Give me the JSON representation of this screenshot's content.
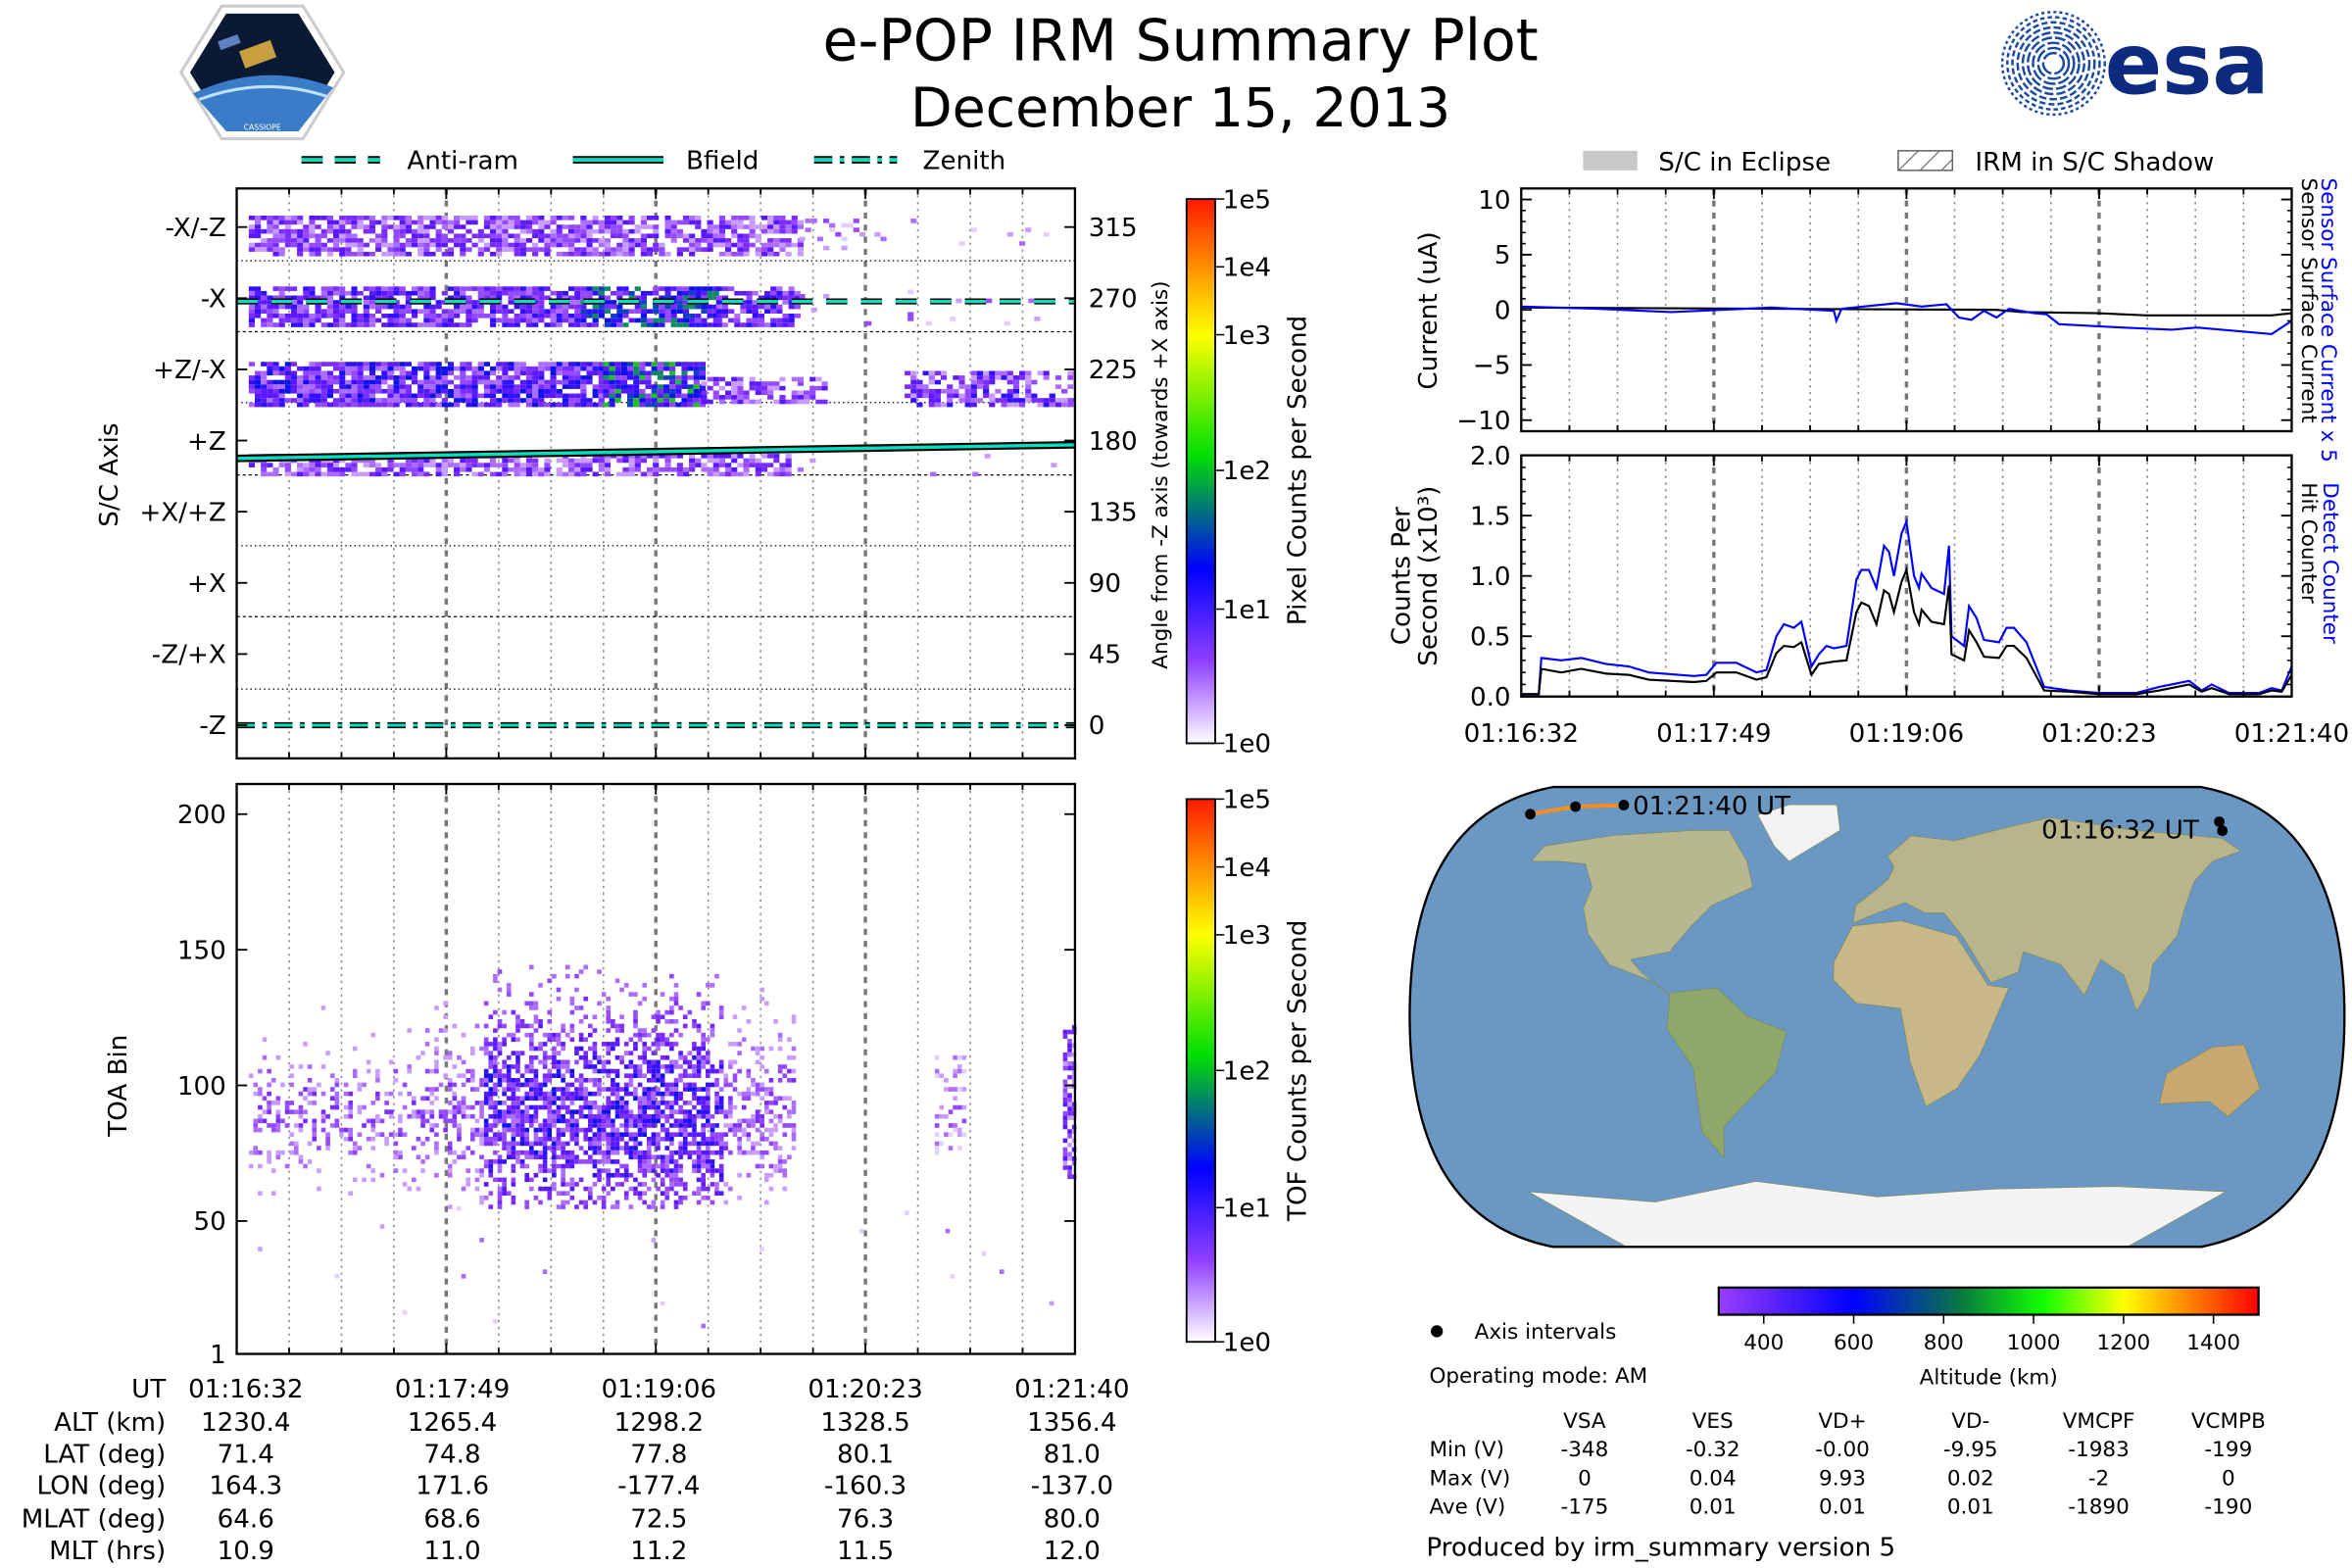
{
  "header": {
    "title": "e-POP IRM Summary Plot",
    "subtitle": "December 15, 2013",
    "logo_left_text": "CASSIOPE",
    "logo_right_text": "esa"
  },
  "legend_left": {
    "anti_ram": "Anti-ram",
    "bfield": "Bfield",
    "zenith": "Zenith"
  },
  "legend_right": {
    "eclipse": "S/C in Eclipse",
    "shadow": "IRM in S/C Shadow"
  },
  "time_ticks": [
    "01:16:32",
    "01:17:49",
    "01:19:06",
    "01:20:23",
    "01:21:40"
  ],
  "colors": {
    "accent_line": "#00e0c0",
    "blue": "#0000ff",
    "black": "#000000",
    "ocean": "#6b98c2"
  },
  "chart_data": [
    {
      "id": "pixel_angle",
      "type": "heatmap",
      "ylabel": "S/C Axis",
      "y2label": "Angle from -Z axis (towards +X axis)",
      "axis_labels": [
        "-X/-Z",
        "-X",
        "+Z/-X",
        "+Z",
        "+X/+Z",
        "+X",
        "-Z/+X",
        "-Z"
      ],
      "angle_ticks": [
        "315",
        "270",
        "225",
        "180",
        "135",
        "90",
        "45",
        "0"
      ],
      "xlim_seconds": [
        0,
        308
      ],
      "colorbar": {
        "label": "Pixel Counts per Second",
        "ticks": [
          "1e5",
          "1e4",
          "1e3",
          "1e2",
          "1e1",
          "1e0"
        ]
      },
      "reference_lines": [
        {
          "name": "Anti-ram",
          "angle": 268
        },
        {
          "name": "Bfield",
          "angle_start": 168.7,
          "angle_end": 177.3
        },
        {
          "name": "Zenith",
          "angle": 0
        }
      ]
    },
    {
      "id": "tof",
      "type": "heatmap",
      "ylabel": "TOA Bin",
      "yticks": [
        "200",
        "150",
        "100",
        "50",
        "1"
      ],
      "ylim": [
        1,
        210
      ],
      "colorbar": {
        "label": "TOF Counts per Second",
        "ticks": [
          "1e5",
          "1e4",
          "1e3",
          "1e2",
          "1e1",
          "1e0"
        ]
      }
    },
    {
      "id": "current",
      "type": "line",
      "ylabel": "Current (uA)",
      "yticks": [
        "10",
        "5",
        "0",
        "−5",
        "−10"
      ],
      "ylim": [
        -11,
        11
      ],
      "xlim_seconds": [
        0,
        308
      ],
      "right_labels": [
        "Sensor Surface Current x 5",
        "Sensor Surface Current"
      ],
      "series": [
        {
          "name": "Sensor Surface Current",
          "color": "#000000",
          "x": [
            0,
            100,
            190,
            200,
            230,
            250,
            300,
            308
          ],
          "y": [
            0.2,
            0.1,
            0,
            -0.2,
            -0.3,
            -0.5,
            -0.5,
            -0.3
          ]
        },
        {
          "name": "Sensor Surface Current x 5",
          "color": "#0000ff",
          "x": [
            0,
            30,
            60,
            80,
            100,
            125,
            126,
            128,
            150,
            160,
            170,
            175,
            180,
            185,
            190,
            195,
            205,
            210,
            215,
            240,
            260,
            270,
            300,
            308
          ],
          "y": [
            0.3,
            0.1,
            -0.2,
            0,
            0.2,
            -0.1,
            -1.0,
            0.1,
            0.6,
            0.3,
            0.5,
            -0.7,
            -0.9,
            -0.1,
            -0.7,
            0.1,
            -0.3,
            -0.4,
            -1.3,
            -1.6,
            -1.8,
            -1.6,
            -2.2,
            -1.0
          ]
        }
      ]
    },
    {
      "id": "counts",
      "type": "line",
      "ylabel_1": "Counts Per",
      "ylabel_2": "Second (x10³)",
      "yticks": [
        "2.0",
        "1.5",
        "1.0",
        "0.5",
        "0.0"
      ],
      "ylim": [
        0,
        2
      ],
      "xlim_seconds": [
        0,
        308
      ],
      "right_labels": [
        "Detect Counter",
        "Hit Counter"
      ],
      "series": [
        {
          "name": "Detect Counter",
          "color": "#0000ff",
          "x": [
            0,
            7,
            8,
            16,
            24,
            34,
            43,
            51,
            69,
            74,
            78,
            86,
            94,
            98,
            102,
            105,
            109,
            112,
            116,
            119,
            122,
            125,
            130,
            134,
            136,
            139,
            142,
            145,
            147,
            149,
            152,
            154,
            157,
            159,
            160,
            164,
            169,
            171,
            172,
            177,
            179,
            182,
            185,
            191,
            194,
            197,
            202,
            209,
            219,
            231,
            246,
            255,
            267,
            272,
            276,
            283,
            295,
            300,
            304,
            308
          ],
          "y": [
            0.02,
            0.02,
            0.32,
            0.3,
            0.32,
            0.27,
            0.25,
            0.2,
            0.17,
            0.18,
            0.28,
            0.28,
            0.2,
            0.22,
            0.5,
            0.6,
            0.57,
            0.62,
            0.25,
            0.35,
            0.42,
            0.4,
            0.42,
            0.97,
            1.05,
            1.05,
            0.9,
            1.25,
            1.2,
            1.0,
            1.35,
            1.45,
            1.0,
            0.9,
            1.02,
            0.9,
            0.85,
            1.25,
            0.5,
            0.42,
            0.75,
            0.65,
            0.47,
            0.45,
            0.57,
            0.57,
            0.45,
            0.08,
            0.05,
            0.03,
            0.03,
            0.08,
            0.13,
            0.05,
            0.1,
            0.03,
            0.03,
            0.07,
            0.05,
            0.25
          ]
        },
        {
          "name": "Hit Counter",
          "color": "#000000",
          "x": [
            0,
            7,
            8,
            16,
            24,
            34,
            43,
            51,
            69,
            74,
            78,
            86,
            94,
            98,
            102,
            105,
            109,
            112,
            116,
            119,
            122,
            125,
            130,
            134,
            136,
            139,
            142,
            145,
            147,
            149,
            152,
            154,
            157,
            159,
            160,
            164,
            169,
            171,
            172,
            177,
            179,
            182,
            185,
            191,
            194,
            197,
            202,
            209,
            219,
            231,
            246,
            255,
            267,
            272,
            276,
            283,
            295,
            300,
            304,
            308
          ],
          "y": [
            0.02,
            0.02,
            0.23,
            0.2,
            0.23,
            0.19,
            0.18,
            0.14,
            0.12,
            0.13,
            0.2,
            0.2,
            0.14,
            0.16,
            0.36,
            0.42,
            0.41,
            0.45,
            0.18,
            0.27,
            0.28,
            0.29,
            0.3,
            0.7,
            0.78,
            0.75,
            0.6,
            0.88,
            0.85,
            0.7,
            0.95,
            1.05,
            0.7,
            0.6,
            0.72,
            0.62,
            0.6,
            0.92,
            0.35,
            0.3,
            0.55,
            0.45,
            0.33,
            0.32,
            0.42,
            0.42,
            0.32,
            0.05,
            0.04,
            0.02,
            0.02,
            0.05,
            0.1,
            0.04,
            0.07,
            0.02,
            0.02,
            0.05,
            0.04,
            0.18
          ]
        }
      ]
    },
    {
      "id": "altitude_colorbar",
      "type": "colorbar",
      "label": "Altitude (km)",
      "ticks": [
        "400",
        "600",
        "800",
        "1000",
        "1200",
        "1400"
      ],
      "range": [
        300,
        1500
      ]
    }
  ],
  "map": {
    "start_label": "01:16:32 UT",
    "end_label": "01:21:40 UT",
    "legend_label": "Axis intervals"
  },
  "ephemeris": {
    "row_labels": [
      "UT",
      "ALT (km)",
      "LAT (deg)",
      "LON (deg)",
      "MLAT (deg)",
      "MLT (hrs)"
    ],
    "rows": [
      [
        "01:16:32",
        "01:17:49",
        "01:19:06",
        "01:20:23",
        "01:21:40"
      ],
      [
        "1230.4",
        "1265.4",
        "1298.2",
        "1328.5",
        "1356.4"
      ],
      [
        "71.4",
        "74.8",
        "77.8",
        "80.1",
        "81.0"
      ],
      [
        "164.3",
        "171.6",
        "-177.4",
        "-160.3",
        "-137.0"
      ],
      [
        "64.6",
        "68.6",
        "72.5",
        "76.3",
        "80.0"
      ],
      [
        "10.9",
        "11.0",
        "11.2",
        "11.5",
        "12.0"
      ]
    ]
  },
  "operating_mode": "Operating mode: AM",
  "voltages": {
    "columns": [
      "VSA",
      "VES",
      "VD+",
      "VD-",
      "VMCPF",
      "VCMPB"
    ],
    "rows": [
      {
        "label": "Min (V)",
        "values": [
          "-348",
          "-0.32",
          "-0.00",
          "-9.95",
          "-1983",
          "-199"
        ]
      },
      {
        "label": "Max (V)",
        "values": [
          "0",
          "0.04",
          "9.93",
          "0.02",
          "-2",
          "0"
        ]
      },
      {
        "label": "Ave (V)",
        "values": [
          "-175",
          "0.01",
          "0.01",
          "0.01",
          "-1890",
          "-190"
        ]
      }
    ]
  },
  "footer": "Produced by irm_summary version 5"
}
